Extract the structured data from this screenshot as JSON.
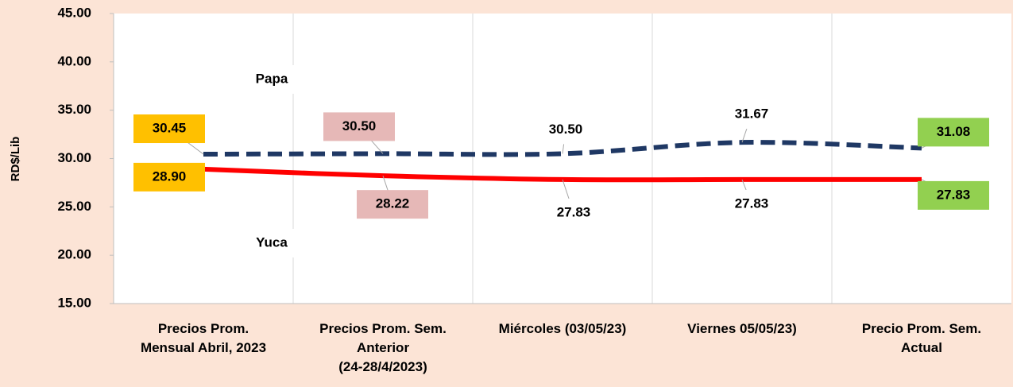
{
  "chart_data": {
    "type": "line",
    "y_label": "RD$/Lib",
    "categories": [
      "Precios Prom.\nMensual Abril, 2023",
      "Precios Prom. Sem.\nAnterior\n(24-28/4/2023)",
      "Miércoles  (03/05/23)",
      "Viernes  05/05/23)",
      "Precio Prom. Sem.\nActual"
    ],
    "series": [
      {
        "name": "Papa",
        "color": "#1f3864",
        "dashed": true,
        "values": [
          30.45,
          30.5,
          30.5,
          31.67,
          31.08
        ],
        "value_labels": [
          "30.45",
          "30.50",
          "30.50",
          "31.67",
          "31.08"
        ]
      },
      {
        "name": "Yuca",
        "color": "#ff0000",
        "dashed": false,
        "values": [
          28.9,
          28.22,
          27.83,
          27.83,
          27.83
        ],
        "value_labels": [
          "28.90",
          "28.22",
          "27.83",
          "27.83",
          "27.83"
        ]
      }
    ],
    "ylim": [
      15,
      45
    ],
    "yticks": [
      {
        "value": 15,
        "label": "15.00"
      },
      {
        "value": 20,
        "label": "20.00"
      },
      {
        "value": 25,
        "label": "25.00"
      },
      {
        "value": 30,
        "label": "30.00"
      },
      {
        "value": 35,
        "label": "35.00"
      },
      {
        "value": 40,
        "label": "40.00"
      },
      {
        "value": 45,
        "label": "45.00"
      }
    ]
  }
}
